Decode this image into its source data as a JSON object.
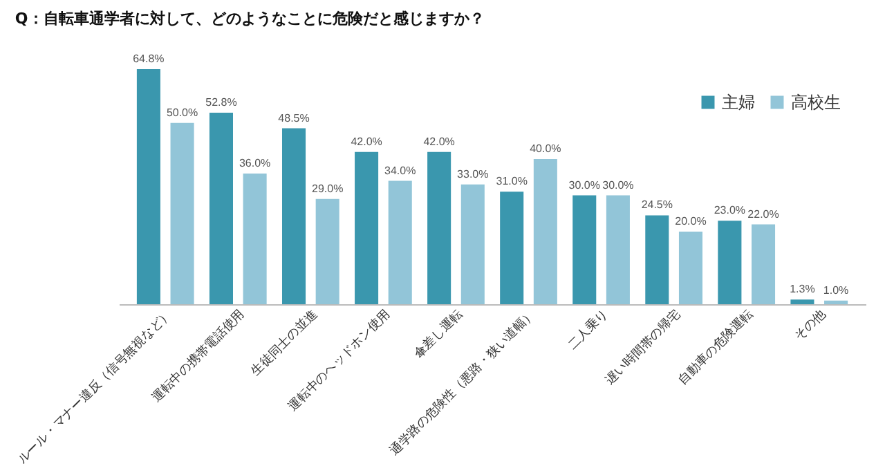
{
  "chart_data": {
    "type": "bar",
    "title": "Q：自転車通学者に対して、どのようなことに危険だと感じますか？",
    "categories": [
      "ルール・マナー違反（信号無視など）",
      "運転中の携帯電話使用",
      "生徒同士の並進",
      "運転中のヘッドホン使用",
      "傘差し運転",
      "通学路の危険性（悪路・狭い道幅）",
      "二人乗り",
      "遅い時間帯の帰宅",
      "自動車の危険運転",
      "その他"
    ],
    "series": [
      {
        "name": "主婦",
        "color": "#3a97ae",
        "values": [
          64.8,
          52.8,
          48.5,
          42.0,
          42.0,
          31.0,
          30.0,
          24.5,
          23.0,
          1.3
        ],
        "value_labels": [
          "64.8%",
          "52.8%",
          "48.5%",
          "42.0%",
          "42.0%",
          "31.0%",
          "30.0%",
          "24.5%",
          "23.0%",
          "1.3%"
        ]
      },
      {
        "name": "高校生",
        "color": "#92c5d8",
        "values": [
          50.0,
          36.0,
          29.0,
          34.0,
          33.0,
          40.0,
          30.0,
          20.0,
          22.0,
          1.0
        ],
        "value_labels": [
          "50.0%",
          "36.0%",
          "29.0%",
          "34.0%",
          "33.0%",
          "40.0%",
          "30.0%",
          "20.0%",
          "22.0%",
          "1.0%"
        ]
      }
    ],
    "tick_labels": "x",
    "grid": false,
    "legend": "top right"
  }
}
